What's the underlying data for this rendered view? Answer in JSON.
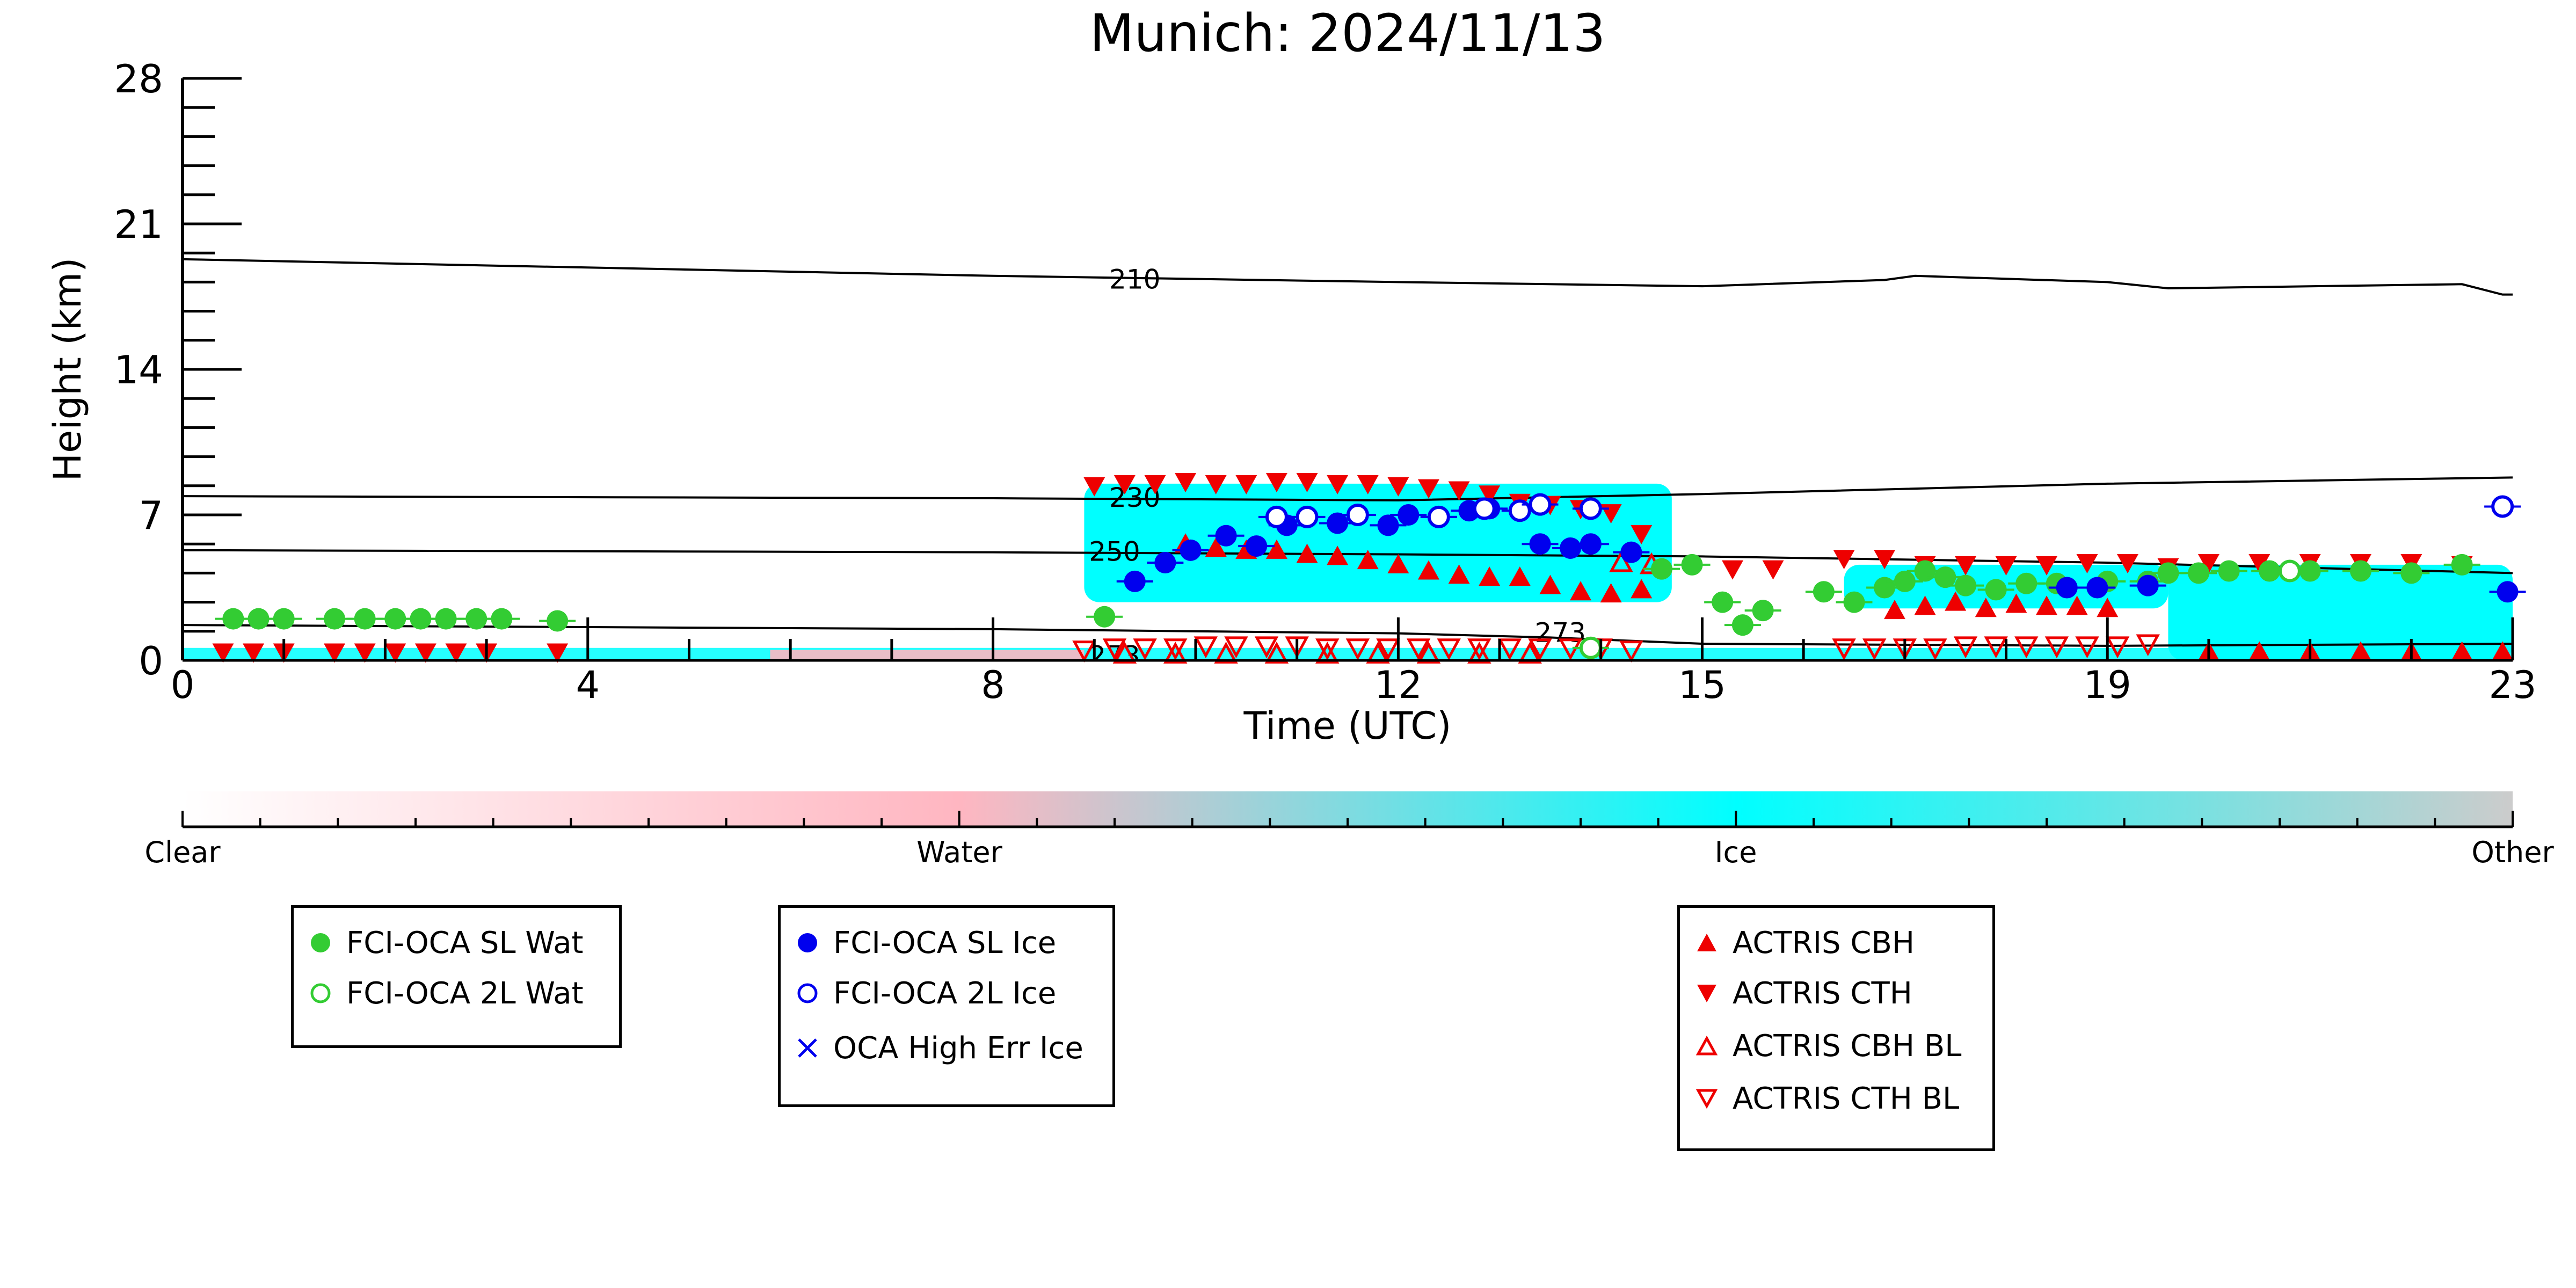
{
  "chart_data": {
    "type": "scatter",
    "title": "Munich: 2024/11/13",
    "xlabel": "Time (UTC)",
    "ylabel": "Height (km)",
    "xlim": [
      0,
      23
    ],
    "ylim": [
      0,
      28
    ],
    "xticks": [
      0,
      4,
      8,
      12,
      15,
      19,
      23
    ],
    "yticks": [
      0,
      7,
      14,
      21,
      28
    ],
    "background_phase": {
      "description": "cloud phase shading",
      "ice_regions": [
        {
          "x0": 8.9,
          "x1": 14.7,
          "y0": 2.8,
          "y1": 8.5
        },
        {
          "x0": 16.4,
          "x1": 19.6,
          "y0": 2.5,
          "y1": 4.6
        },
        {
          "x0": 19.6,
          "x1": 23.0,
          "y0": 0.0,
          "y1": 4.6
        }
      ],
      "surface_band": {
        "x0": 0,
        "x1": 23,
        "y0": 0,
        "y1": 0.6
      }
    },
    "contours": [
      {
        "label": "210",
        "x": [
          0,
          4,
          8,
          12,
          15,
          16.8,
          17.1,
          19,
          19.6,
          22.5,
          22.9,
          23
        ],
        "y": [
          19.3,
          18.9,
          18.5,
          18.2,
          18.0,
          18.3,
          18.5,
          18.2,
          17.9,
          18.1,
          17.6,
          17.6
        ]
      },
      {
        "label": "230",
        "x": [
          0,
          4,
          8,
          12,
          15,
          19,
          23
        ],
        "y": [
          7.9,
          7.85,
          7.8,
          7.7,
          8.0,
          8.5,
          8.8
        ]
      },
      {
        "label": "250",
        "x": [
          0,
          4,
          8,
          12,
          15,
          19,
          23
        ],
        "y": [
          5.3,
          5.25,
          5.2,
          5.1,
          5.0,
          4.7,
          4.2
        ]
      },
      {
        "label": "273",
        "x": [
          0,
          4,
          8,
          12,
          13.5,
          15,
          19,
          23
        ],
        "y": [
          1.7,
          1.6,
          1.5,
          1.3,
          1.1,
          0.8,
          0.7,
          0.8
        ]
      }
    ],
    "contour_labels": [
      {
        "text": "210",
        "x": 9.4,
        "y": 18.3
      },
      {
        "text": "230",
        "x": 9.4,
        "y": 7.8
      },
      {
        "text": "250",
        "x": 9.2,
        "y": 5.2
      },
      {
        "text": "273",
        "x": 13.6,
        "y": 1.3
      },
      {
        "text": "273",
        "x": 9.2,
        "y": 0.2
      }
    ],
    "series": [
      {
        "name": "FCI-OCA SL Wat",
        "marker": "circle-filled",
        "color": "#33cc33",
        "x": [
          0.5,
          0.75,
          1.0,
          1.5,
          1.8,
          2.1,
          2.35,
          2.6,
          2.9,
          3.15,
          3.7,
          9.1,
          14.6,
          14.9,
          15.2,
          15.4,
          15.6,
          16.2,
          16.5,
          16.8,
          17.0,
          17.2,
          17.4,
          17.6,
          17.9,
          18.2,
          18.5,
          19.0,
          19.4,
          19.6,
          19.9,
          20.2,
          20.6,
          21.0,
          21.5,
          22.0,
          22.5
        ],
        "y": [
          2.0,
          2.0,
          2.0,
          2.0,
          2.0,
          2.0,
          2.0,
          2.0,
          2.0,
          2.0,
          1.9,
          2.1,
          4.4,
          4.6,
          2.8,
          1.7,
          2.4,
          3.3,
          2.8,
          3.5,
          3.8,
          4.3,
          4.0,
          3.6,
          3.4,
          3.7,
          3.7,
          3.8,
          3.8,
          4.2,
          4.2,
          4.3,
          4.3,
          4.3,
          4.3,
          4.2,
          4.6
        ]
      },
      {
        "name": "FCI-OCA 2L Wat",
        "marker": "circle-open",
        "color": "#33cc33",
        "x": [
          13.9,
          20.8
        ],
        "y": [
          0.6,
          4.3
        ]
      },
      {
        "name": "FCI-OCA SL Ice",
        "marker": "circle-filled",
        "color": "#0000ee",
        "x": [
          9.4,
          9.7,
          9.95,
          10.3,
          10.6,
          10.9,
          11.4,
          11.9,
          12.1,
          12.4,
          12.7,
          12.9,
          13.4,
          13.7,
          13.9,
          14.3,
          18.6,
          18.9,
          19.4,
          22.95
        ],
        "y": [
          3.8,
          4.7,
          5.3,
          6.0,
          5.5,
          6.5,
          6.6,
          6.5,
          7.0,
          6.9,
          7.2,
          7.3,
          5.6,
          5.4,
          5.6,
          5.2,
          3.5,
          3.5,
          3.6,
          3.3
        ]
      },
      {
        "name": "FCI-OCA 2L Ice",
        "marker": "circle-open",
        "color": "#0000ee",
        "x": [
          10.8,
          11.1,
          11.6,
          12.4,
          12.85,
          13.2,
          13.4,
          13.9,
          22.9
        ],
        "y": [
          6.9,
          6.9,
          7.0,
          6.9,
          7.3,
          7.2,
          7.5,
          7.3,
          7.4
        ]
      },
      {
        "name": "OCA High Err Ice",
        "marker": "x",
        "color": "#0000ee",
        "x": [],
        "y": []
      },
      {
        "name": "ACTRIS CBH",
        "marker": "triangle-up-filled",
        "color": "#ee0000",
        "x": [
          9.9,
          10.2,
          10.5,
          10.8,
          11.1,
          11.4,
          11.7,
          12.0,
          12.3,
          12.6,
          12.9,
          13.2,
          13.5,
          13.8,
          14.1,
          14.4,
          16.9,
          17.2,
          17.5,
          17.8,
          18.1,
          18.4,
          18.7,
          19.0,
          20.0,
          20.5,
          21.0,
          21.5,
          22.0,
          22.5,
          22.9
        ],
        "y": [
          5.6,
          5.4,
          5.3,
          5.3,
          5.1,
          5.0,
          4.8,
          4.6,
          4.3,
          4.1,
          4.0,
          4.0,
          3.6,
          3.3,
          3.2,
          3.4,
          2.4,
          2.6,
          2.8,
          2.5,
          2.7,
          2.6,
          2.6,
          2.5,
          0.4,
          0.4,
          0.4,
          0.4,
          0.4,
          0.4,
          0.4
        ]
      },
      {
        "name": "ACTRIS CTH",
        "marker": "triangle-down-filled",
        "color": "#ee0000",
        "x": [
          0.4,
          0.7,
          1.0,
          1.5,
          1.8,
          2.1,
          2.4,
          2.7,
          3.0,
          3.7,
          9.0,
          9.3,
          9.6,
          9.9,
          10.2,
          10.5,
          10.8,
          11.1,
          11.4,
          11.7,
          12.0,
          12.3,
          12.6,
          12.9,
          13.2,
          13.5,
          13.8,
          14.1,
          14.4,
          15.3,
          15.7,
          16.4,
          16.8,
          17.2,
          17.6,
          18.0,
          18.4,
          18.8,
          19.2,
          19.6,
          20.0,
          20.5,
          21.0,
          21.5,
          22.0,
          22.5
        ],
        "y": [
          0.4,
          0.4,
          0.4,
          0.4,
          0.4,
          0.4,
          0.4,
          0.4,
          0.4,
          0.4,
          8.4,
          8.5,
          8.5,
          8.6,
          8.5,
          8.5,
          8.6,
          8.6,
          8.5,
          8.5,
          8.4,
          8.3,
          8.2,
          8.0,
          7.6,
          7.5,
          7.3,
          7.1,
          6.1,
          4.4,
          4.4,
          4.9,
          4.9,
          4.6,
          4.6,
          4.6,
          4.6,
          4.7,
          4.7,
          4.5,
          4.7,
          4.7,
          4.7,
          4.7,
          4.7,
          4.6
        ]
      },
      {
        "name": "ACTRIS CBH BL",
        "marker": "triangle-up-open",
        "color": "#ee0000",
        "x": [
          9.3,
          9.8,
          10.3,
          10.8,
          11.3,
          11.8,
          12.3,
          12.8,
          13.3,
          14.2,
          14.5
        ],
        "y": [
          0.3,
          0.3,
          0.3,
          0.3,
          0.3,
          0.3,
          0.3,
          0.3,
          0.3,
          4.7,
          4.6
        ]
      },
      {
        "name": "ACTRIS CTH BL",
        "marker": "triangle-down-open",
        "color": "#ee0000",
        "x": [
          8.9,
          9.2,
          9.5,
          9.8,
          10.1,
          10.4,
          10.7,
          11.0,
          11.3,
          11.6,
          11.9,
          12.2,
          12.5,
          12.8,
          13.1,
          13.4,
          13.7,
          14.0,
          14.3,
          16.4,
          16.7,
          17.0,
          17.3,
          17.6,
          17.9,
          18.2,
          18.5,
          18.8,
          19.1,
          19.4
        ],
        "y": [
          0.5,
          0.6,
          0.6,
          0.6,
          0.7,
          0.7,
          0.7,
          0.7,
          0.6,
          0.6,
          0.6,
          0.6,
          0.6,
          0.6,
          0.6,
          0.6,
          0.6,
          0.6,
          0.5,
          0.6,
          0.6,
          0.6,
          0.6,
          0.7,
          0.7,
          0.7,
          0.7,
          0.7,
          0.7,
          0.8
        ]
      }
    ],
    "colorbar": {
      "labels": [
        "Clear",
        "Water",
        "Ice",
        "Other"
      ],
      "colors": [
        "#ffffff",
        "#ffb6c1",
        "#00ffff",
        "#cccccc"
      ],
      "stops": [
        0,
        0.333,
        0.667,
        1.0
      ]
    },
    "legends": [
      {
        "entries": [
          "FCI-OCA SL Wat",
          "FCI-OCA 2L Wat"
        ]
      },
      {
        "entries": [
          "FCI-OCA SL Ice",
          "FCI-OCA 2L Ice",
          "OCA High Err Ice"
        ]
      },
      {
        "entries": [
          "ACTRIS CBH",
          "ACTRIS CTH",
          "ACTRIS CBH BL",
          "ACTRIS CTH BL"
        ]
      }
    ]
  }
}
